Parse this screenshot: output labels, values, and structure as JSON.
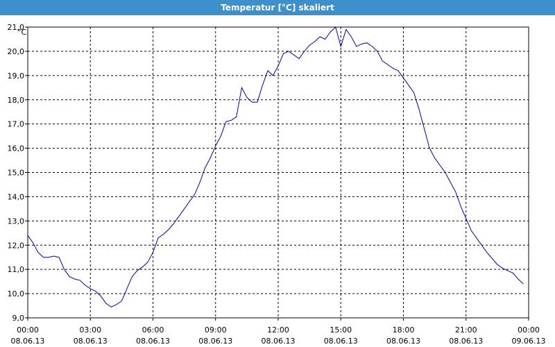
{
  "window": {
    "title": "Temperatur [°C] skaliert"
  },
  "chart_data": {
    "type": "line",
    "title": "Temperatur [°C] skaliert",
    "ylabel": "°C",
    "xlabel": "",
    "ylim": [
      9.0,
      21.0
    ],
    "xlim": [
      0,
      24
    ],
    "grid": true,
    "yticks": [
      "9,0",
      "10,0",
      "11,0",
      "12,0",
      "13,0",
      "14,0",
      "15,0",
      "16,0",
      "17,0",
      "18,0",
      "19,0",
      "20,0",
      "21,0"
    ],
    "xticks": [
      {
        "time": "00:00",
        "date": "08.06.13"
      },
      {
        "time": "03:00",
        "date": "08.06.13"
      },
      {
        "time": "06:00",
        "date": "08.06.13"
      },
      {
        "time": "09:00",
        "date": "08.06.13"
      },
      {
        "time": "12:00",
        "date": "08.06.13"
      },
      {
        "time": "15:00",
        "date": "08.06.13"
      },
      {
        "time": "18:00",
        "date": "08.06.13"
      },
      {
        "time": "21:00",
        "date": "08.06.13"
      },
      {
        "time": "00:00",
        "date": "09.06.13"
      }
    ],
    "series": [
      {
        "color": "#0000aa",
        "x": [
          0,
          0.25,
          0.5,
          0.75,
          1,
          1.25,
          1.5,
          1.75,
          2,
          2.25,
          2.5,
          2.75,
          3,
          3.25,
          3.5,
          3.75,
          4,
          4.25,
          4.5,
          4.75,
          5,
          5.25,
          5.5,
          5.75,
          6,
          6.25,
          6.5,
          6.75,
          7,
          7.25,
          7.5,
          7.75,
          8,
          8.25,
          8.5,
          8.75,
          9,
          9.25,
          9.5,
          9.75,
          10,
          10.25,
          10.5,
          10.75,
          11,
          11.25,
          11.5,
          11.75,
          12,
          12.25,
          12.5,
          12.75,
          13,
          13.25,
          13.5,
          13.75,
          14,
          14.25,
          14.5,
          14.75,
          15,
          15.25,
          15.5,
          15.75,
          16,
          16.25,
          16.5,
          16.75,
          17,
          17.25,
          17.5,
          17.75,
          18,
          18.25,
          18.5,
          18.75,
          19,
          19.25,
          19.5,
          19.75,
          20,
          20.25,
          20.5,
          20.75,
          21,
          21.25,
          21.5,
          21.75,
          22,
          22.25,
          22.5,
          22.75,
          23,
          23.25,
          23.5,
          23.75
        ],
        "values": [
          12.4,
          12.1,
          11.7,
          11.5,
          11.5,
          11.55,
          11.5,
          11.0,
          10.7,
          10.6,
          10.55,
          10.35,
          10.2,
          10.1,
          9.9,
          9.6,
          9.45,
          9.55,
          9.7,
          10.2,
          10.7,
          10.95,
          11.1,
          11.3,
          11.7,
          12.3,
          12.45,
          12.65,
          12.9,
          13.2,
          13.5,
          13.8,
          14.1,
          14.6,
          15.2,
          15.6,
          16.1,
          16.5,
          17.1,
          17.15,
          17.3,
          18.5,
          18.1,
          17.9,
          17.9,
          18.6,
          19.2,
          19.0,
          19.4,
          19.9,
          20.0,
          19.85,
          19.7,
          20.0,
          20.25,
          20.4,
          20.6,
          20.5,
          20.8,
          21.0,
          20.2,
          20.9,
          20.6,
          20.2,
          20.3,
          20.35,
          20.2,
          20.0,
          19.6,
          19.45,
          19.3,
          19.2,
          18.9,
          18.6,
          18.3,
          17.6,
          16.8,
          16.0,
          15.6,
          15.3,
          15.0,
          14.6,
          14.2,
          13.6,
          13.1,
          12.6,
          12.3,
          12.0,
          11.7,
          11.45,
          11.2,
          11.05,
          10.95,
          10.85,
          10.6,
          10.4
        ]
      }
    ]
  }
}
